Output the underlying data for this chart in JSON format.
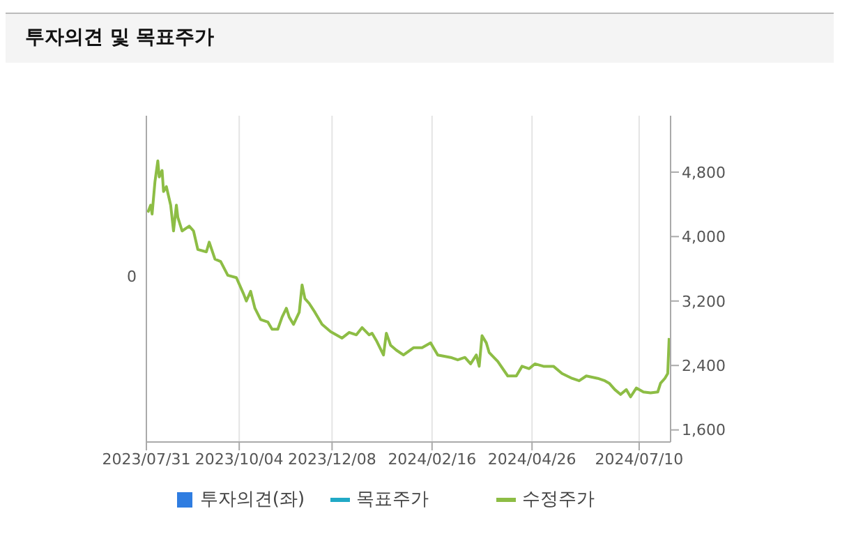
{
  "chart_data": {
    "type": "line",
    "title": "투자의견 및 목표주가",
    "x": [
      "2023-08-01",
      "2023-08-03",
      "2023-08-04",
      "2023-08-06",
      "2023-08-08",
      "2023-08-09",
      "2023-08-11",
      "2023-08-12",
      "2023-08-14",
      "2023-08-17",
      "2023-08-19",
      "2023-08-21",
      "2023-08-22",
      "2023-08-25",
      "2023-08-30",
      "2023-09-02",
      "2023-09-05",
      "2023-09-11",
      "2023-09-13",
      "2023-09-17",
      "2023-09-21",
      "2023-09-26",
      "2023-10-02",
      "2023-10-07",
      "2023-10-09",
      "2023-10-12",
      "2023-10-15",
      "2023-10-19",
      "2023-10-24",
      "2023-10-27",
      "2023-10-31",
      "2023-11-03",
      "2023-11-06",
      "2023-11-08",
      "2023-11-11",
      "2023-11-15",
      "2023-11-17",
      "2023-11-19",
      "2023-11-22",
      "2023-11-26",
      "2023-12-01",
      "2023-12-07",
      "2023-12-15",
      "2023-12-20",
      "2023-12-25",
      "2023-12-29",
      "2024-01-03",
      "2024-01-05",
      "2024-01-08",
      "2024-01-13",
      "2024-01-15",
      "2024-01-18",
      "2024-01-22",
      "2024-01-27",
      "2024-02-03",
      "2024-02-09",
      "2024-02-15",
      "2024-02-20",
      "2024-02-29",
      "2024-03-05",
      "2024-03-10",
      "2024-03-14",
      "2024-03-18",
      "2024-03-20",
      "2024-03-22",
      "2024-03-25",
      "2024-03-27",
      "2024-04-02",
      "2024-04-09",
      "2024-04-15",
      "2024-04-19",
      "2024-04-24",
      "2024-04-28",
      "2024-05-04",
      "2024-05-11",
      "2024-05-17",
      "2024-05-24",
      "2024-05-29",
      "2024-06-03",
      "2024-06-11",
      "2024-06-16",
      "2024-06-19",
      "2024-06-23",
      "2024-06-27",
      "2024-07-01",
      "2024-07-04",
      "2024-07-08",
      "2024-07-13",
      "2024-07-18",
      "2024-07-23",
      "2024-07-25",
      "2024-07-28",
      "2024-07-30",
      "2024-07-31"
    ],
    "series": [
      {
        "name": "투자의견(좌)",
        "type": "bar",
        "color": "#2f7de1",
        "values": [
          null,
          null,
          null,
          null,
          null,
          null,
          null,
          null,
          null,
          null,
          null,
          null,
          null,
          null,
          null,
          null,
          null,
          null,
          null,
          null,
          null,
          null,
          null,
          null,
          null,
          null,
          null,
          null,
          null,
          null,
          null,
          null,
          null,
          null,
          null,
          null,
          null,
          null,
          null,
          null,
          null,
          null,
          null,
          null,
          null,
          null,
          null,
          null,
          null,
          null,
          null,
          null,
          null,
          null,
          null,
          null,
          null,
          null,
          null,
          null,
          null,
          null,
          null,
          null,
          null,
          null,
          null,
          null,
          null,
          null,
          null,
          null,
          null,
          null,
          null,
          null,
          null,
          null,
          null,
          null,
          null,
          null,
          null,
          null,
          null,
          null,
          null,
          null,
          null,
          null,
          null,
          null,
          null,
          null
        ]
      },
      {
        "name": "목표주가",
        "type": "line",
        "color": "#21a9c6",
        "values": [
          null,
          null,
          null,
          null,
          null,
          null,
          null,
          null,
          null,
          null,
          null,
          null,
          null,
          null,
          null,
          null,
          null,
          null,
          null,
          null,
          null,
          null,
          null,
          null,
          null,
          null,
          null,
          null,
          null,
          null,
          null,
          null,
          null,
          null,
          null,
          null,
          null,
          null,
          null,
          null,
          null,
          null,
          null,
          null,
          null,
          null,
          null,
          null,
          null,
          null,
          null,
          null,
          null,
          null,
          null,
          null,
          null,
          null,
          null,
          null,
          null,
          null,
          null,
          null,
          null,
          null,
          null,
          null,
          null,
          null,
          null,
          null,
          null,
          null,
          null,
          null,
          null,
          null,
          null,
          null,
          null,
          null,
          null,
          null,
          null,
          null,
          null,
          null,
          null,
          null,
          null,
          null,
          null,
          null
        ]
      },
      {
        "name": "수정주가",
        "color": "#8dbd45",
        "axis": "y2",
        "values": [
          4300,
          4390,
          4280,
          4680,
          4940,
          4740,
          4820,
          4560,
          4620,
          4390,
          4070,
          4390,
          4240,
          4070,
          4130,
          4070,
          3840,
          3810,
          3930,
          3720,
          3690,
          3520,
          3490,
          3290,
          3200,
          3320,
          3110,
          2970,
          2940,
          2850,
          2850,
          3000,
          3110,
          3000,
          2910,
          3060,
          3400,
          3230,
          3170,
          3060,
          2910,
          2820,
          2740,
          2810,
          2780,
          2870,
          2780,
          2800,
          2710,
          2530,
          2800,
          2650,
          2590,
          2530,
          2620,
          2620,
          2680,
          2530,
          2500,
          2470,
          2500,
          2420,
          2530,
          2390,
          2770,
          2680,
          2560,
          2450,
          2270,
          2270,
          2390,
          2360,
          2420,
          2390,
          2390,
          2300,
          2240,
          2210,
          2270,
          2240,
          2210,
          2180,
          2100,
          2040,
          2100,
          2010,
          2120,
          2070,
          2060,
          2070,
          2180,
          2240,
          2300,
          2740
        ]
      }
    ],
    "xlim": [
      "2023-07-31",
      "2024-08-01"
    ],
    "xticks": [
      {
        "value": "2023-07-31",
        "label": "2023/07/31"
      },
      {
        "value": "2023-10-04",
        "label": "2023/10/04"
      },
      {
        "value": "2023-12-08",
        "label": "2023/12/08"
      },
      {
        "value": "2024-02-16",
        "label": "2024/02/16"
      },
      {
        "value": "2024-04-26",
        "label": "2024/04/26"
      },
      {
        "value": "2024-07-10",
        "label": "2024/07/10"
      }
    ],
    "annotations": [
      "0"
    ],
    "y2lim": [
      1450,
      5500
    ],
    "y2ticks": [
      {
        "value": 1600,
        "label": "1,600"
      },
      {
        "value": 2400,
        "label": "2,400"
      },
      {
        "value": 3200,
        "label": "3,200"
      },
      {
        "value": 4000,
        "label": "4,000"
      },
      {
        "value": 4800,
        "label": "4,800"
      }
    ],
    "grid": "x",
    "legend": "bottom",
    "marker": "none",
    "line_style": "solid"
  }
}
